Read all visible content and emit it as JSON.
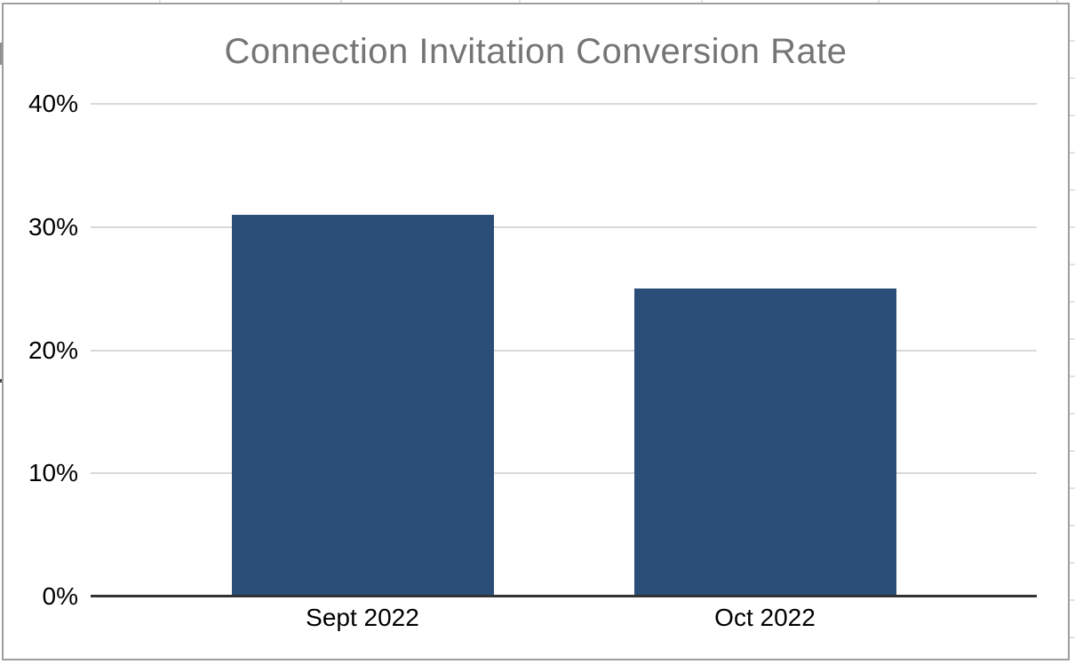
{
  "chart_data": {
    "type": "bar",
    "title": "Connection Invitation Conversion Rate",
    "categories": [
      "Sept 2022",
      "Oct 2022"
    ],
    "values": [
      31,
      25
    ],
    "value_unit": "%",
    "xlabel": "",
    "ylabel": "",
    "ylim": [
      0,
      40
    ],
    "yticks": [
      0,
      10,
      20,
      30,
      40
    ],
    "ytick_labels": [
      "0%",
      "10%",
      "20%",
      "30%",
      "40%"
    ],
    "legend_position": "none",
    "grid": true
  },
  "colors": {
    "bar_fill": "#2a4e77",
    "gridline": "#d9d9d9",
    "axis_line": "#333333",
    "title_text": "#757575",
    "tick_text": "#000000",
    "chart_border": "#9e9e9e",
    "sheet_gridline": "#e2e2e2"
  }
}
